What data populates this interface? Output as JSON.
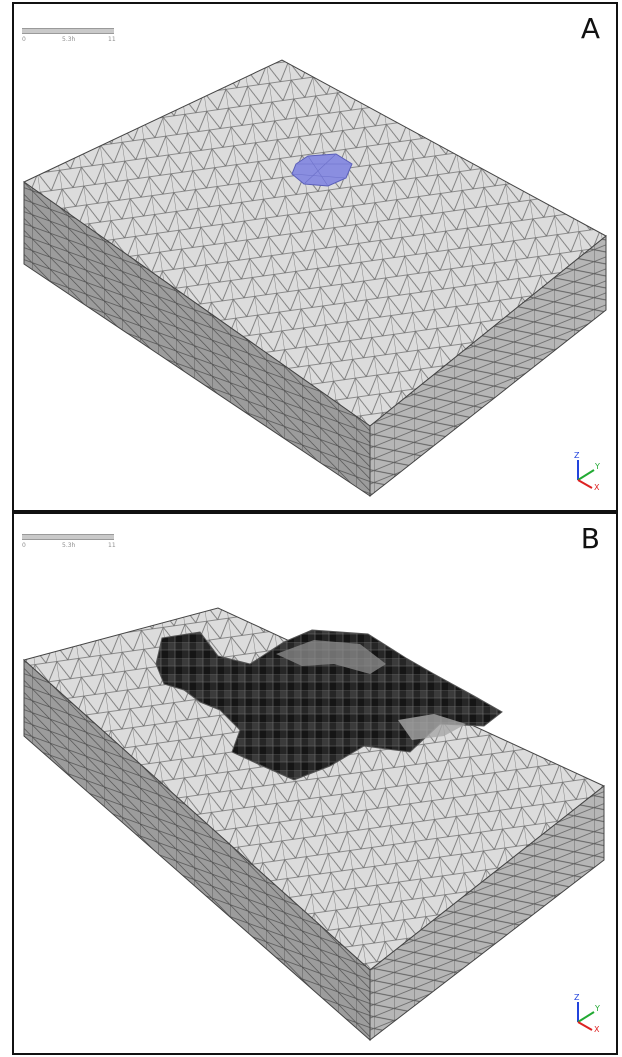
{
  "figure": {
    "panels": [
      {
        "id": "A",
        "letter": "A",
        "scale_ticks": [
          "0",
          "5.3h",
          "11"
        ]
      },
      {
        "id": "B",
        "letter": "B",
        "scale_ticks": [
          "0",
          "5.3h",
          "11"
        ]
      }
    ],
    "axis_labels": {
      "z": "Z",
      "y": "Y",
      "x": "X"
    },
    "colors": {
      "mesh_face": "#d9d9d9",
      "mesh_line": "#6f6f6f",
      "side_face": "#9c9c9c",
      "front_face": "#b8b8b8",
      "highlight_region": "#8a8ee0",
      "cavity_dark": "#1c1c1c",
      "axis_z": "#2244dd",
      "axis_y": "#22aa33",
      "axis_x": "#dd2222"
    }
  }
}
